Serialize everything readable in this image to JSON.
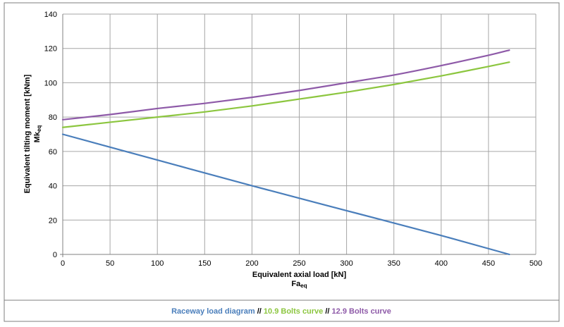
{
  "chart_data": {
    "type": "line",
    "title": "",
    "xlabel": "Equivalent axial load [kN]",
    "xlabel_sub": "Fa",
    "xlabel_sub_suffix": "eq",
    "ylabel": "Equivalent tilting moment [kNm]",
    "ylabel_sub": "Mk",
    "ylabel_sub_suffix": "eq",
    "xlim": [
      0,
      500
    ],
    "ylim": [
      0,
      140
    ],
    "xticks": [
      0,
      50,
      100,
      150,
      200,
      250,
      300,
      350,
      400,
      450,
      500
    ],
    "yticks": [
      0,
      20,
      40,
      60,
      80,
      100,
      120,
      140
    ],
    "grid": true,
    "legend_position": "bottom",
    "legend_separator": "//",
    "series": [
      {
        "name": "Raceway load diagram",
        "color": "#4a7ebb",
        "x": [
          0,
          100,
          200,
          300,
          400,
          472
        ],
        "y": [
          70,
          55,
          40,
          25.5,
          11,
          0
        ]
      },
      {
        "name": "10.9 Bolts curve",
        "color": "#8cc63f",
        "x": [
          0,
          50,
          100,
          150,
          200,
          250,
          300,
          350,
          400,
          450,
          472
        ],
        "y": [
          74,
          77,
          80,
          83,
          86.5,
          90.5,
          94.5,
          99,
          104,
          109.5,
          112
        ]
      },
      {
        "name": "12.9 Bolts curve",
        "color": "#8e5aa8",
        "x": [
          0,
          50,
          100,
          150,
          200,
          250,
          300,
          350,
          400,
          450,
          472
        ],
        "y": [
          78.5,
          81.5,
          85,
          88,
          91.5,
          95.5,
          100,
          104.5,
          110,
          116,
          119
        ]
      }
    ]
  }
}
